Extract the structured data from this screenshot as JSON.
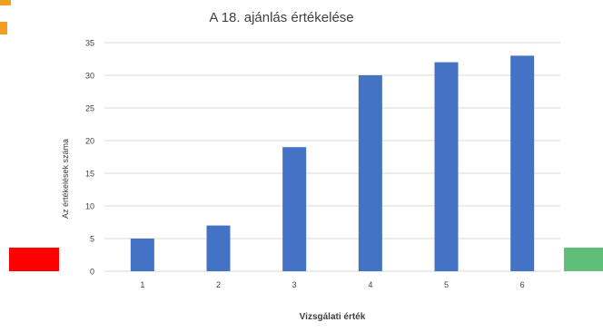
{
  "chart_data": {
    "type": "bar",
    "title": "A 18. ajánlás értékelése",
    "xlabel": "Vizsgálati érték",
    "ylabel": "Az értékelések száma",
    "categories": [
      "1",
      "2",
      "3",
      "4",
      "5",
      "6"
    ],
    "values": [
      5,
      7,
      19,
      30,
      32,
      33
    ],
    "ylim": [
      0,
      35
    ],
    "yticks": [
      "0",
      "5",
      "10",
      "15",
      "20",
      "25",
      "30",
      "35"
    ],
    "grid": true,
    "legend": "none",
    "bar_color": "#4472c4",
    "grid_color": "#d9d9d9"
  },
  "decorations": {
    "left_swatch_color": "#ff0000",
    "right_swatch_color": "#5fbf78",
    "top_left_fragment_color": "#f0a020"
  }
}
